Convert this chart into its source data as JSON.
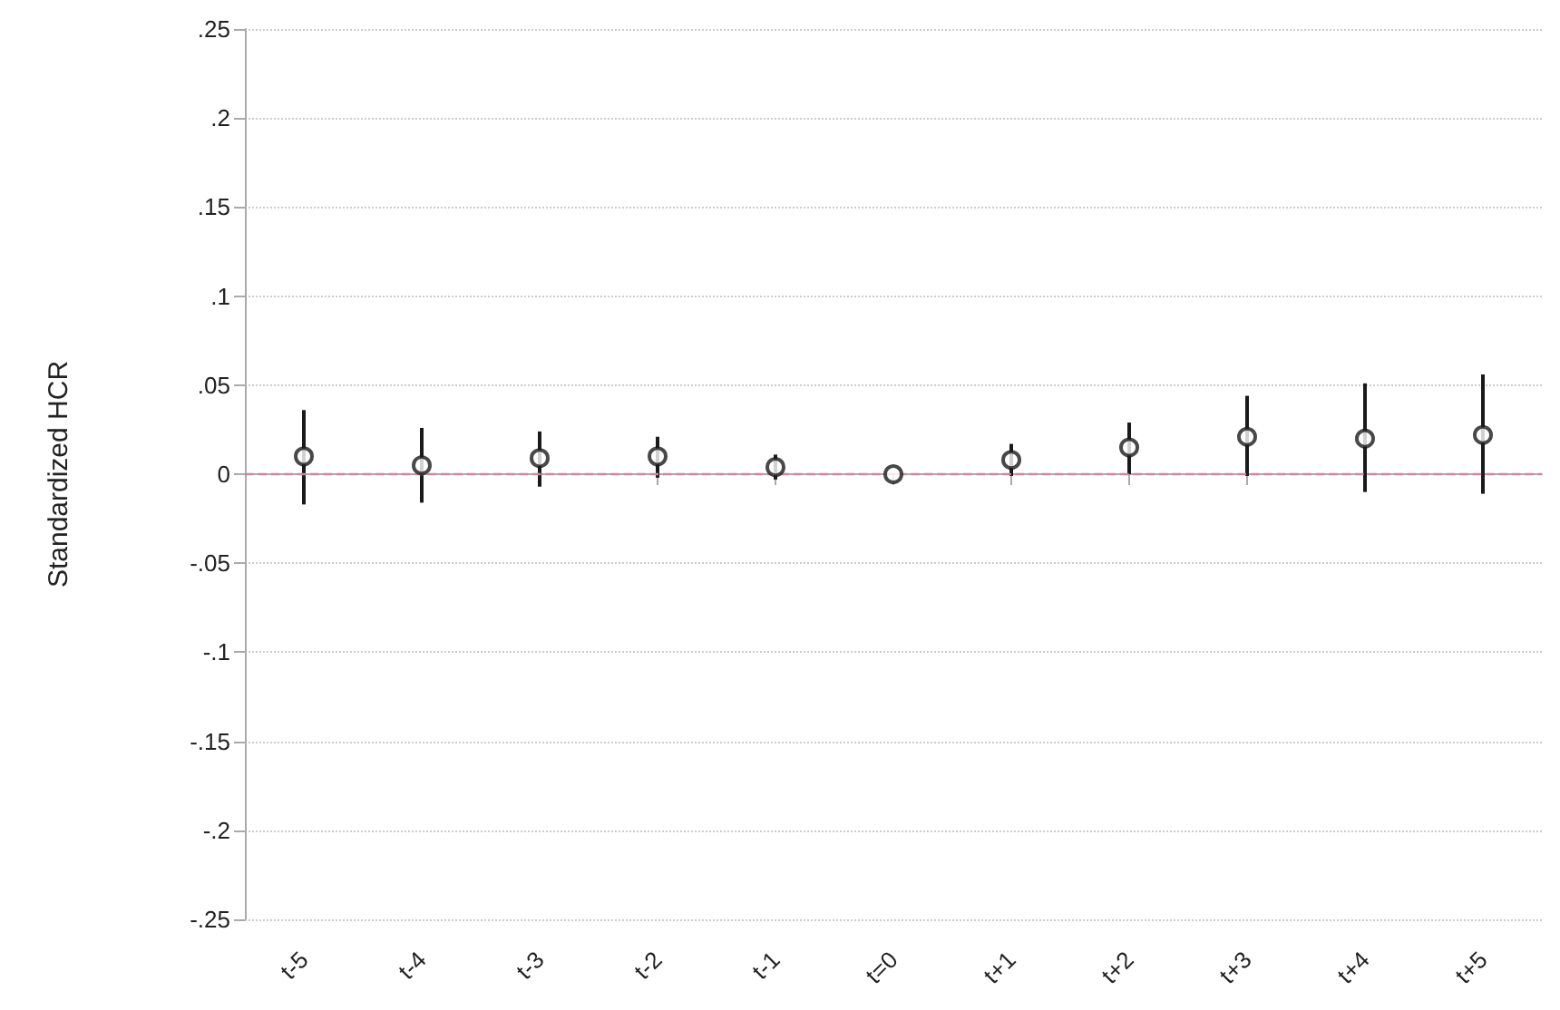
{
  "chart_data": {
    "type": "scatter",
    "ylabel": "Standardized HCR",
    "categories": [
      "t-5",
      "t-4",
      "t-3",
      "t-2",
      "t-1",
      "t=0",
      "t+1",
      "t+2",
      "t+3",
      "t+4",
      "t+5"
    ],
    "series": [
      {
        "color": "#1a1a1a",
        "values": [
          0.01,
          0.005,
          0.009,
          0.01,
          0.004,
          0.0,
          0.008,
          0.015,
          0.021,
          0.02,
          0.022
        ],
        "errors": [
          [
            -0.017,
            0.036
          ],
          [
            -0.016,
            0.026
          ],
          [
            -0.007,
            0.024
          ],
          [
            -0.002,
            0.021
          ],
          [
            -0.003,
            0.011
          ],
          null,
          [
            -0.001,
            0.017
          ],
          [
            0.0,
            0.029
          ],
          [
            -0.001,
            0.044
          ],
          [
            -0.01,
            0.051
          ],
          [
            -0.011,
            0.056
          ]
        ]
      }
    ],
    "marker": "circle",
    "ylim": [
      -0.25,
      0.25
    ],
    "yticks": [
      {
        "value": -0.25,
        "label": "-.25"
      },
      {
        "value": -0.2,
        "label": "-.2"
      },
      {
        "value": -0.15,
        "label": "-.15"
      },
      {
        "value": -0.1,
        "label": "-.1"
      },
      {
        "value": -0.05,
        "label": "-.05"
      },
      0,
      {
        "value": 0.05,
        "label": ".05"
      },
      {
        "value": 0.1,
        "label": ".1"
      },
      {
        "value": 0.15,
        "label": ".15"
      },
      {
        "value": 0.2,
        "label": ".2"
      },
      {
        "value": 0.25,
        "label": ".25"
      }
    ],
    "grid": "y",
    "ref_lines": [
      {
        "axis": "y",
        "value": 0,
        "color": "#d4849c",
        "line_style": "dashed"
      }
    ]
  }
}
